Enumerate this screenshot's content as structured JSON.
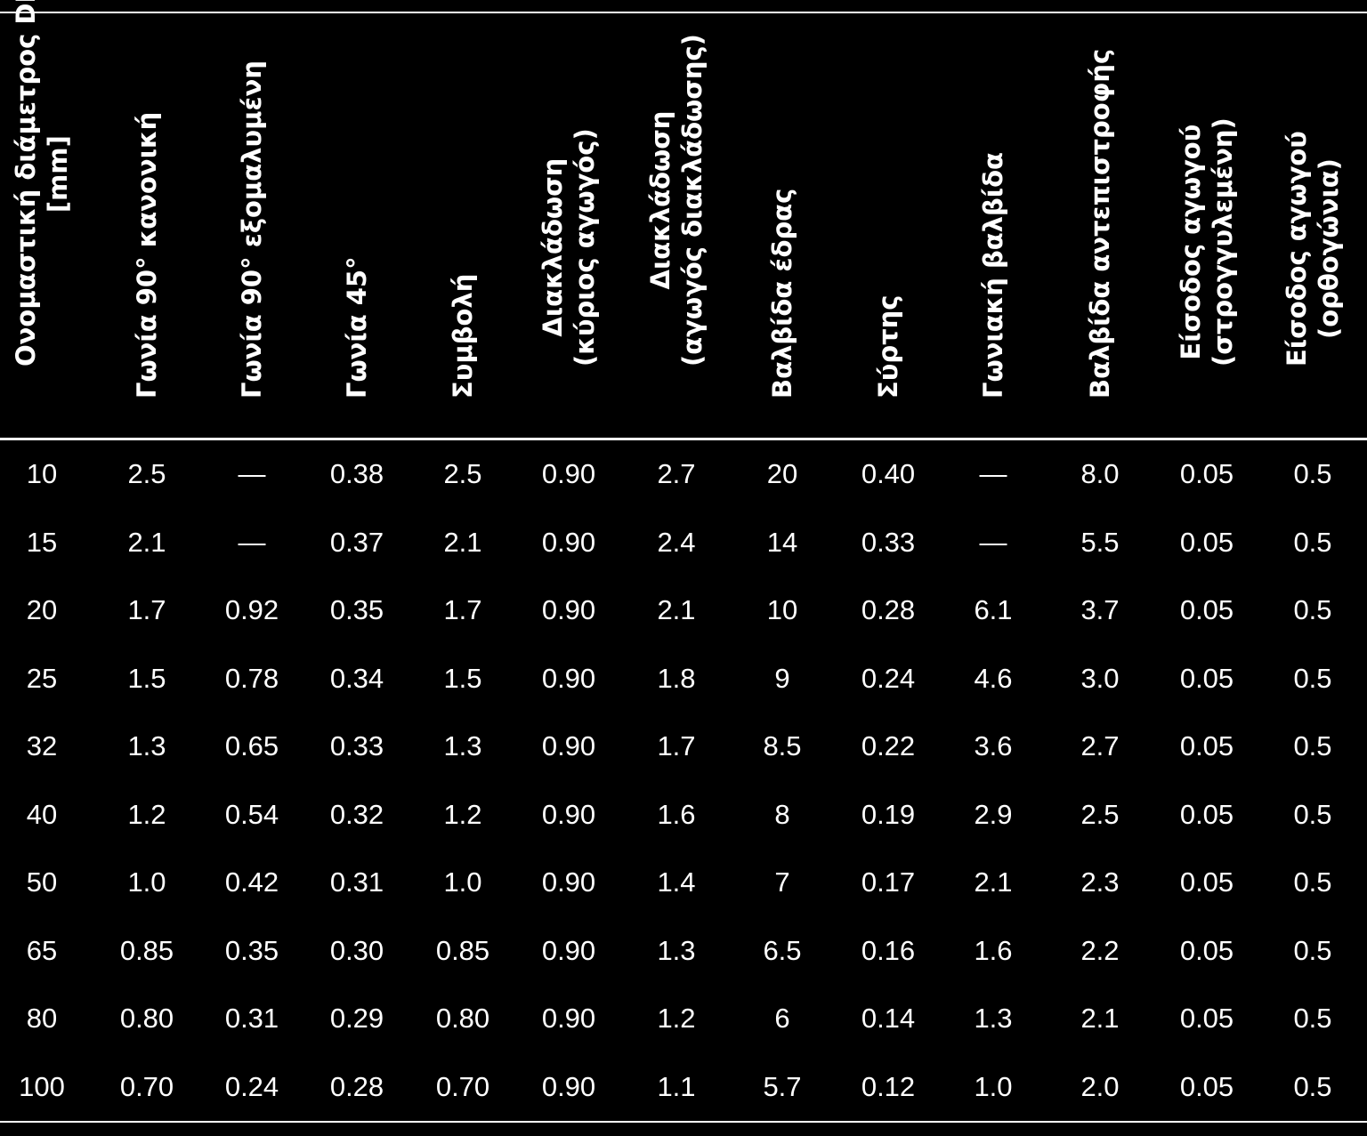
{
  "table": {
    "columns": [
      {
        "label_lines": [
          "Ονομαστική διάμετρος  DN",
          "[mm]"
        ]
      },
      {
        "label_lines": [
          "Γωνία 90° κανονική"
        ]
      },
      {
        "label_lines": [
          "Γωνία 90° εξομαλυμένη"
        ]
      },
      {
        "label_lines": [
          "Γωνία 45°"
        ]
      },
      {
        "label_lines": [
          "Συμβολή"
        ]
      },
      {
        "label_lines": [
          "Διακλάδωση",
          "(κύριος αγωγός)"
        ]
      },
      {
        "label_lines": [
          "Διακλάδωση",
          "(αγωγός διακλάδωσης)"
        ]
      },
      {
        "label_lines": [
          "Βαλβίδα έδρας"
        ]
      },
      {
        "label_lines": [
          "Σύρτης"
        ]
      },
      {
        "label_lines": [
          "Γωνιακή βαλβίδα"
        ]
      },
      {
        "label_lines": [
          "Βαλβίδα αντεπιστροφής"
        ]
      },
      {
        "label_lines": [
          "Είσοδος αγωγού",
          "(στρογγυλεμένη)"
        ]
      },
      {
        "label_lines": [
          "Είσοδος αγωγού",
          "(ορθογώνια)"
        ]
      }
    ],
    "rows": [
      [
        "10",
        "2.5",
        "—",
        "0.38",
        "2.5",
        "0.90",
        "2.7",
        "20",
        "0.40",
        "—",
        "8.0",
        "0.05",
        "0.5"
      ],
      [
        "15",
        "2.1",
        "—",
        "0.37",
        "2.1",
        "0.90",
        "2.4",
        "14",
        "0.33",
        "—",
        "5.5",
        "0.05",
        "0.5"
      ],
      [
        "20",
        "1.7",
        "0.92",
        "0.35",
        "1.7",
        "0.90",
        "2.1",
        "10",
        "0.28",
        "6.1",
        "3.7",
        "0.05",
        "0.5"
      ],
      [
        "25",
        "1.5",
        "0.78",
        "0.34",
        "1.5",
        "0.90",
        "1.8",
        "9",
        "0.24",
        "4.6",
        "3.0",
        "0.05",
        "0.5"
      ],
      [
        "32",
        "1.3",
        "0.65",
        "0.33",
        "1.3",
        "0.90",
        "1.7",
        "8.5",
        "0.22",
        "3.6",
        "2.7",
        "0.05",
        "0.5"
      ],
      [
        "40",
        "1.2",
        "0.54",
        "0.32",
        "1.2",
        "0.90",
        "1.6",
        "8",
        "0.19",
        "2.9",
        "2.5",
        "0.05",
        "0.5"
      ],
      [
        "50",
        "1.0",
        "0.42",
        "0.31",
        "1.0",
        "0.90",
        "1.4",
        "7",
        "0.17",
        "2.1",
        "2.3",
        "0.05",
        "0.5"
      ],
      [
        "65",
        "0.85",
        "0.35",
        "0.30",
        "0.85",
        "0.90",
        "1.3",
        "6.5",
        "0.16",
        "1.6",
        "2.2",
        "0.05",
        "0.5"
      ],
      [
        "80",
        "0.80",
        "0.31",
        "0.29",
        "0.80",
        "0.90",
        "1.2",
        "6",
        "0.14",
        "1.3",
        "2.1",
        "0.05",
        "0.5"
      ],
      [
        "100",
        "0.70",
        "0.24",
        "0.28",
        "0.70",
        "0.90",
        "1.1",
        "5.7",
        "0.12",
        "1.0",
        "2.0",
        "0.05",
        "0.5"
      ]
    ]
  },
  "colors": {
    "background": "#000000",
    "text": "#ffffff",
    "rule": "#ffffff"
  }
}
